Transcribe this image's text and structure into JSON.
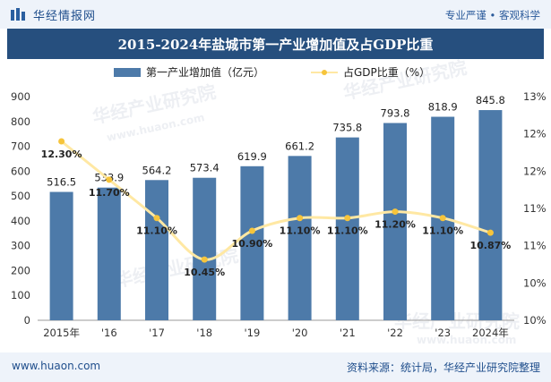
{
  "header": {
    "brand": "华经情报网",
    "tagline": "专业严谨 • 客观科学"
  },
  "title": "2015-2024年盐城市第一产业增加值及占GDP比重",
  "watermark": {
    "text": "华经产业研究院",
    "url": "www.huaon.com"
  },
  "footer": {
    "website": "www.huaon.com",
    "source": "资料来源：统计局，华经产业研究院整理"
  },
  "colors": {
    "bar": "#4d7aa9",
    "line": "#ffe8a3",
    "marker": "#f6c43b",
    "title_bg": "#264f7e",
    "band_bg": "#eef3fa"
  },
  "chart_data": {
    "type": "bar+line",
    "categories": [
      "2015年",
      "'16",
      "'17",
      "'18",
      "'19",
      "'20",
      "'21",
      "'22",
      "'23",
      "2024年"
    ],
    "series": [
      {
        "name": "第一产业增加值（亿元）",
        "type": "bar",
        "axis": "left",
        "values": [
          516.5,
          533.9,
          564.2,
          573.4,
          619.9,
          661.2,
          735.8,
          793.8,
          818.9,
          845.8
        ],
        "labels": [
          "516.5",
          "533.9",
          "564.2",
          "573.4",
          "619.9",
          "661.2",
          "735.8",
          "793.8",
          "818.9",
          "845.8"
        ]
      },
      {
        "name": "占GDP比重（%）",
        "type": "line",
        "axis": "right",
        "values": [
          12.3,
          11.7,
          11.1,
          10.45,
          10.9,
          11.1,
          11.1,
          11.2,
          11.1,
          10.87
        ],
        "labels": [
          "12.30%",
          "11.70%",
          "11.10%",
          "10.45%",
          "10.90%",
          "11.10%",
          "11.10%",
          "11.20%",
          "11.10%",
          "10.87%"
        ]
      }
    ],
    "y_left": {
      "min": 0,
      "max": 900,
      "ticks": [
        "0",
        "100",
        "200",
        "300",
        "400",
        "500",
        "600",
        "700",
        "800",
        "900"
      ]
    },
    "y_right": {
      "min": 9.5,
      "max": 13.0,
      "ticks": [
        "10%",
        "10%",
        "11%",
        "11%",
        "12%",
        "12%",
        "13%"
      ]
    },
    "legend_position": "top",
    "grid": false
  }
}
